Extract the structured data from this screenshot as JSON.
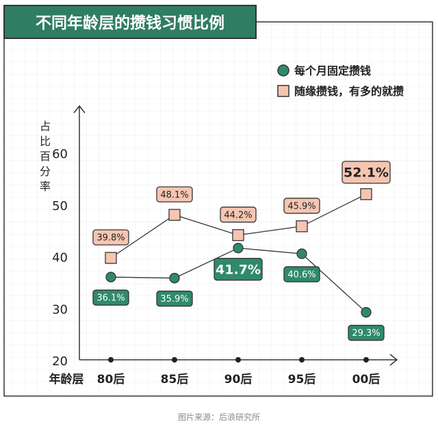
{
  "chart_data": {
    "type": "line",
    "title": "不同年龄层的攒钱习惯比例",
    "xlabel": "年龄层",
    "ylabel": "占比百分率",
    "categories": [
      "80后",
      "85后",
      "90后",
      "95后",
      "00后"
    ],
    "ylim": [
      20,
      60
    ],
    "yticks": [
      "20",
      "30",
      "40",
      "50",
      "60"
    ],
    "grid": true,
    "legend_position": "top-right",
    "series": [
      {
        "name": "每个月固定攒钱",
        "marker": "circle",
        "color": "#2f8a6b",
        "values": [
          36.1,
          35.9,
          41.7,
          40.6,
          29.3
        ],
        "labels": [
          "36.1%",
          "35.9%",
          "41.7%",
          "40.6%",
          "29.3%"
        ],
        "highlight_index": 2
      },
      {
        "name": "随缘攒钱，有多的就攒",
        "marker": "square",
        "color": "#f6c5b2",
        "values": [
          39.8,
          48.1,
          44.2,
          45.9,
          52.1
        ],
        "labels": [
          "39.8%",
          "48.1%",
          "44.2%",
          "45.9%",
          "52.1%"
        ],
        "highlight_index": 4
      }
    ]
  },
  "source": "图片来源：后浪研究所",
  "colors": {
    "header_bg": "#2f7d62",
    "accent_green": "#2f8a6b",
    "accent_pink": "#f6c5b2",
    "frame": "#333333",
    "grid": "#e6e6e6",
    "header_text": "#ffffff"
  }
}
